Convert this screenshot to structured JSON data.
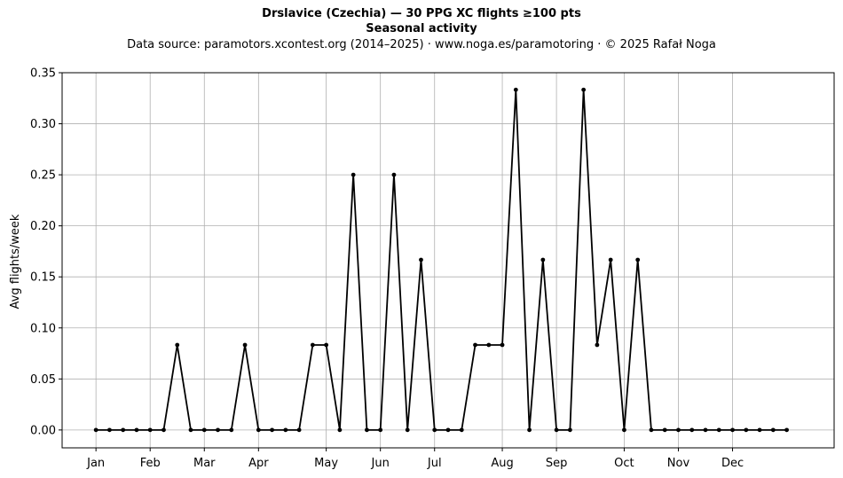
{
  "chart_data": {
    "type": "line",
    "title": "Drslavice (Czechia)  —  30 PPG XC flights ≥100 pts",
    "title2": "Seasonal activity",
    "subtitle": "Data source: paramotors.xcontest.org (2014–2025)  ·  www.noga.es/paramotoring  ·  © 2025 Rafał Noga",
    "xlabel": "",
    "ylabel": "Avg flights/week",
    "ylim": [
      -0.0175,
      0.35
    ],
    "xlim": [
      -2.5,
      54.5
    ],
    "y_ticks": [
      0.0,
      0.05,
      0.1,
      0.15,
      0.2,
      0.25,
      0.3,
      0.35
    ],
    "y_tick_labels": [
      "0.00",
      "0.05",
      "0.10",
      "0.15",
      "0.20",
      "0.25",
      "0.30",
      "0.35"
    ],
    "x_ticks": [
      0,
      4,
      8,
      12,
      17,
      21,
      25,
      30,
      34,
      39,
      43,
      47
    ],
    "x_tick_labels": [
      "Jan",
      "Feb",
      "Mar",
      "Apr",
      "May",
      "Jun",
      "Jul",
      "Aug",
      "Sep",
      "Oct",
      "Nov",
      "Dec"
    ],
    "grid": true,
    "line_color": "#000000",
    "grid_color": "#b0b0b0",
    "series": [
      {
        "x": [
          0,
          1,
          2,
          3,
          4,
          5,
          6,
          7,
          8,
          9,
          10,
          11,
          12,
          13,
          14,
          15,
          16,
          17,
          18,
          19,
          20,
          21,
          22,
          23,
          24,
          25,
          26,
          27,
          28,
          29,
          30,
          31,
          32,
          33,
          34,
          35,
          36,
          37,
          38,
          39,
          40,
          41,
          42,
          43,
          44,
          45,
          46,
          47,
          48,
          49,
          50,
          51
        ],
        "values": [
          0,
          0,
          0,
          0,
          0,
          0,
          0.0833,
          0,
          0,
          0,
          0,
          0.0833,
          0,
          0,
          0,
          0,
          0.0833,
          0.0833,
          0,
          0.25,
          0,
          0,
          0.25,
          0,
          0.1667,
          0,
          0,
          0,
          0.0833,
          0.0833,
          0.0833,
          0.3333,
          0,
          0.1667,
          0,
          0,
          0.3333,
          0.0833,
          0.1667,
          0,
          0.1667,
          0,
          0,
          0,
          0,
          0,
          0,
          0,
          0,
          0,
          0,
          0
        ]
      }
    ]
  }
}
